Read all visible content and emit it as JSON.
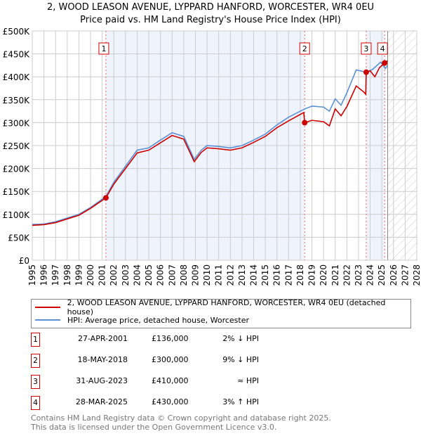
{
  "title": "2, WOOD LEASON AVENUE, LYPPARD HANFORD, WORCESTER, WR4 0EU",
  "subtitle": "Price paid vs. HM Land Registry's House Price Index (HPI)",
  "chart_data": {
    "type": "line",
    "xlim": [
      1995,
      2028
    ],
    "ylim": [
      0,
      500000
    ],
    "y_ticks": [
      0,
      50000,
      100000,
      150000,
      200000,
      250000,
      300000,
      350000,
      400000,
      450000,
      500000
    ],
    "y_tick_labels": [
      "£0",
      "£50K",
      "£100K",
      "£150K",
      "£200K",
      "£250K",
      "£300K",
      "£350K",
      "£400K",
      "£450K",
      "£500K"
    ],
    "x_ticks": [
      "1995",
      "1996",
      "1997",
      "1998",
      "1999",
      "2000",
      "2001",
      "2002",
      "2003",
      "2004",
      "2005",
      "2006",
      "2007",
      "2008",
      "2009",
      "2010",
      "2011",
      "2012",
      "2013",
      "2014",
      "2015",
      "2016",
      "2017",
      "2018",
      "2019",
      "2020",
      "2021",
      "2022",
      "2023",
      "2024",
      "2025",
      "2026",
      "2027",
      "2028"
    ],
    "forecast_start": 2025.5,
    "series": [
      {
        "name": "2, WOOD LEASON AVENUE, LYPPARD HANFORD, WORCESTER, WR4 0EU (detached house)",
        "color": "#cc0000",
        "points": [
          [
            1995,
            76000
          ],
          [
            1996,
            77500
          ],
          [
            1997,
            82000
          ],
          [
            1998,
            90000
          ],
          [
            1999,
            98000
          ],
          [
            2000,
            113000
          ],
          [
            2001.32,
            136000
          ],
          [
            2002,
            166000
          ],
          [
            2003,
            200000
          ],
          [
            2004,
            234000
          ],
          [
            2005,
            240000
          ],
          [
            2006,
            256000
          ],
          [
            2007,
            272000
          ],
          [
            2008,
            264000
          ],
          [
            2008.9,
            215000
          ],
          [
            2009.5,
            235000
          ],
          [
            2010,
            245000
          ],
          [
            2011,
            243000
          ],
          [
            2012,
            240000
          ],
          [
            2013,
            245000
          ],
          [
            2014,
            257000
          ],
          [
            2015,
            270000
          ],
          [
            2016,
            289000
          ],
          [
            2017,
            304000
          ],
          [
            2018.3,
            322000
          ],
          [
            2018.38,
            300000
          ],
          [
            2019,
            305000
          ],
          [
            2020,
            302000
          ],
          [
            2020.5,
            293000
          ],
          [
            2021,
            330000
          ],
          [
            2021.5,
            315000
          ],
          [
            2022,
            335000
          ],
          [
            2022.8,
            380000
          ],
          [
            2023.4,
            368000
          ],
          [
            2023.62,
            362000
          ],
          [
            2023.66,
            410000
          ],
          [
            2024,
            413000
          ],
          [
            2024.4,
            400000
          ],
          [
            2024.8,
            420000
          ],
          [
            2025.24,
            430000
          ],
          [
            2025.5,
            435000
          ]
        ]
      },
      {
        "name": "HPI: Average price, detached house, Worcester",
        "color": "#5b8fd6",
        "points": [
          [
            1995,
            78000
          ],
          [
            1996,
            79000
          ],
          [
            1997,
            84000
          ],
          [
            1998,
            92000
          ],
          [
            1999,
            100000
          ],
          [
            2000,
            115000
          ],
          [
            2001.32,
            139000
          ],
          [
            2002,
            170000
          ],
          [
            2003,
            205000
          ],
          [
            2004,
            240000
          ],
          [
            2005,
            245000
          ],
          [
            2006,
            262000
          ],
          [
            2007,
            278000
          ],
          [
            2008,
            270000
          ],
          [
            2008.9,
            220000
          ],
          [
            2009.5,
            240000
          ],
          [
            2010,
            250000
          ],
          [
            2011,
            248000
          ],
          [
            2012,
            245000
          ],
          [
            2013,
            250000
          ],
          [
            2014,
            262000
          ],
          [
            2015,
            275000
          ],
          [
            2016,
            295000
          ],
          [
            2017,
            312000
          ],
          [
            2018.4,
            330000
          ],
          [
            2019,
            336000
          ],
          [
            2020,
            334000
          ],
          [
            2020.5,
            325000
          ],
          [
            2021,
            352000
          ],
          [
            2021.5,
            338000
          ],
          [
            2022,
            365000
          ],
          [
            2022.8,
            415000
          ],
          [
            2023.66,
            410000
          ],
          [
            2024.2,
            416000
          ],
          [
            2024.9,
            432000
          ],
          [
            2025.3,
            418000
          ],
          [
            2025.5,
            425000
          ]
        ]
      }
    ],
    "sales": [
      {
        "label": "1",
        "x": 2001.32,
        "value": 136000,
        "date": "27-APR-2001",
        "price": "£136,000",
        "hpi": "2% ↓ HPI"
      },
      {
        "label": "2",
        "x": 2018.38,
        "value": 300000,
        "date": "18-MAY-2018",
        "price": "£300,000",
        "hpi": "9% ↓ HPI"
      },
      {
        "label": "3",
        "x": 2023.66,
        "value": 410000,
        "date": "31-AUG-2023",
        "price": "£410,000",
        "hpi": "≈ HPI"
      },
      {
        "label": "4",
        "x": 2025.24,
        "value": 430000,
        "date": "28-MAR-2025",
        "price": "£430,000",
        "hpi": "3% ↑ HPI"
      }
    ]
  },
  "footer": [
    "Contains HM Land Registry data © Crown copyright and database right 2025.",
    "This data is licensed under the Open Government Licence v3.0."
  ]
}
